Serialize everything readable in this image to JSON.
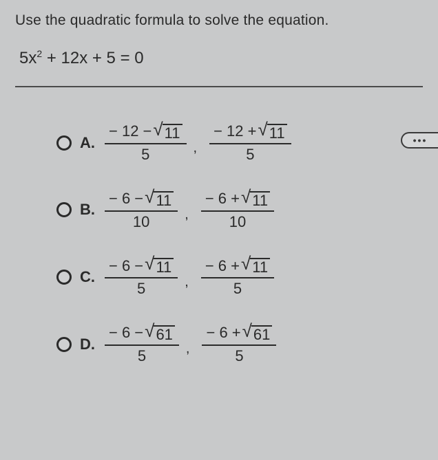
{
  "prompt": "Use the quadratic formula to solve the equation.",
  "equation": {
    "text_before_sup": "5x",
    "sup": "2",
    "text_after_sup": " + 12x + 5 = 0"
  },
  "ellipsis": "•••",
  "options": [
    {
      "letter": "A.",
      "frac1": {
        "lead": "− 12 −",
        "rad": "11",
        "den": "5"
      },
      "frac2": {
        "lead": "− 12 +",
        "rad": "11",
        "den": "5"
      }
    },
    {
      "letter": "B.",
      "frac1": {
        "lead": "− 6 −",
        "rad": "11",
        "den": "10"
      },
      "frac2": {
        "lead": "− 6 +",
        "rad": "11",
        "den": "10"
      }
    },
    {
      "letter": "C.",
      "frac1": {
        "lead": "− 6 −",
        "rad": "11",
        "den": "5"
      },
      "frac2": {
        "lead": "− 6 +",
        "rad": "11",
        "den": "5"
      }
    },
    {
      "letter": "D.",
      "frac1": {
        "lead": "− 6 −",
        "rad": "61",
        "den": "5"
      },
      "frac2": {
        "lead": "− 6 +",
        "rad": "61",
        "den": "5"
      }
    }
  ],
  "comma": ",",
  "colors": {
    "background": "#c8c9ca",
    "text": "#2a2a2a",
    "rule": "#4a4a4a"
  }
}
